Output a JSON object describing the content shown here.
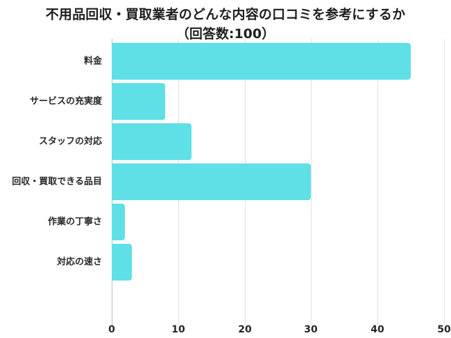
{
  "title": {
    "line1": "不用品回収・買取業者のどんな内容の口コミを参考にするか",
    "line2": "（回答数:100）"
  },
  "colors": {
    "bar": "#5ee0e6",
    "grid": "#e2e2e2",
    "axis": "#bdbdbd",
    "text": "#262626"
  },
  "chart_data": {
    "type": "bar",
    "orientation": "horizontal",
    "title": "不用品回収・買取業者のどんな内容の口コミを参考にするか（回答数:100）",
    "categories": [
      "料金",
      "サービスの充実度",
      "スタッフの対応",
      "回収・買取できる品目",
      "作業の丁寧さ",
      "対応の速さ"
    ],
    "values": [
      45,
      8,
      12,
      30,
      2,
      3
    ],
    "xlabel": "",
    "ylabel": "",
    "xlim": [
      0,
      50
    ],
    "xticks": [
      "0",
      "10",
      "20",
      "30",
      "40",
      "50"
    ],
    "grid": true,
    "legend": "none"
  }
}
